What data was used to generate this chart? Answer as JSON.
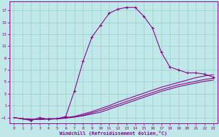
{
  "xlabel": "Windchill (Refroidissement éolien,°C)",
  "bg_color": "#c0e8e8",
  "line_color": "#880088",
  "grid_color": "#99cccc",
  "spine_color": "#880088",
  "curve1_x": [
    1,
    2,
    3,
    4,
    5,
    6,
    7,
    8,
    9,
    10,
    11,
    12,
    13,
    14,
    15,
    16,
    17,
    18,
    19,
    20,
    21,
    22,
    23
  ],
  "curve1_y": [
    -1.2,
    -1.5,
    -1.0,
    -1.3,
    -1.2,
    -0.8,
    3.5,
    8.5,
    12.5,
    14.5,
    16.5,
    17.2,
    17.5,
    17.5,
    16.0,
    14.0,
    10.0,
    7.5,
    7.0,
    6.5,
    6.5,
    6.3,
    5.8
  ],
  "curve2_x": [
    0,
    1,
    2,
    3,
    4,
    5,
    6,
    7,
    8,
    9,
    10,
    11,
    12,
    13,
    14,
    15,
    16,
    17,
    18,
    19,
    20,
    21,
    22,
    23
  ],
  "curve2_y": [
    -1.0,
    -1.2,
    -1.3,
    -1.3,
    -1.2,
    -1.2,
    -1.0,
    -0.8,
    -0.4,
    0.0,
    0.5,
    1.0,
    1.6,
    2.1,
    2.6,
    3.1,
    3.6,
    4.1,
    4.5,
    4.9,
    5.3,
    5.7,
    6.0,
    6.2
  ],
  "curve3_x": [
    0,
    1,
    2,
    3,
    4,
    5,
    6,
    7,
    8,
    9,
    10,
    11,
    12,
    13,
    14,
    15,
    16,
    17,
    18,
    19,
    20,
    21,
    22,
    23
  ],
  "curve3_y": [
    -1.0,
    -1.2,
    -1.3,
    -1.3,
    -1.2,
    -1.2,
    -1.0,
    -0.9,
    -0.6,
    -0.2,
    0.2,
    0.7,
    1.2,
    1.7,
    2.2,
    2.7,
    3.2,
    3.7,
    4.1,
    4.5,
    4.8,
    5.1,
    5.4,
    5.6
  ],
  "curve4_x": [
    0,
    1,
    2,
    3,
    4,
    5,
    6,
    7,
    8,
    9,
    10,
    11,
    12,
    13,
    14,
    15,
    16,
    17,
    18,
    19,
    20,
    21,
    22,
    23
  ],
  "curve4_y": [
    -1.0,
    -1.2,
    -1.3,
    -1.3,
    -1.2,
    -1.2,
    -1.1,
    -0.9,
    -0.7,
    -0.4,
    -0.1,
    0.4,
    0.9,
    1.4,
    1.9,
    2.4,
    2.9,
    3.4,
    3.8,
    4.2,
    4.5,
    4.8,
    5.1,
    5.3
  ],
  "xlim": [
    -0.5,
    23.5
  ],
  "ylim": [
    -2.0,
    18.5
  ],
  "xticks": [
    0,
    1,
    2,
    3,
    4,
    5,
    6,
    7,
    8,
    9,
    10,
    11,
    12,
    13,
    14,
    15,
    16,
    17,
    18,
    19,
    20,
    21,
    22,
    23
  ],
  "yticks": [
    -1,
    1,
    3,
    5,
    7,
    9,
    11,
    13,
    15,
    17
  ]
}
